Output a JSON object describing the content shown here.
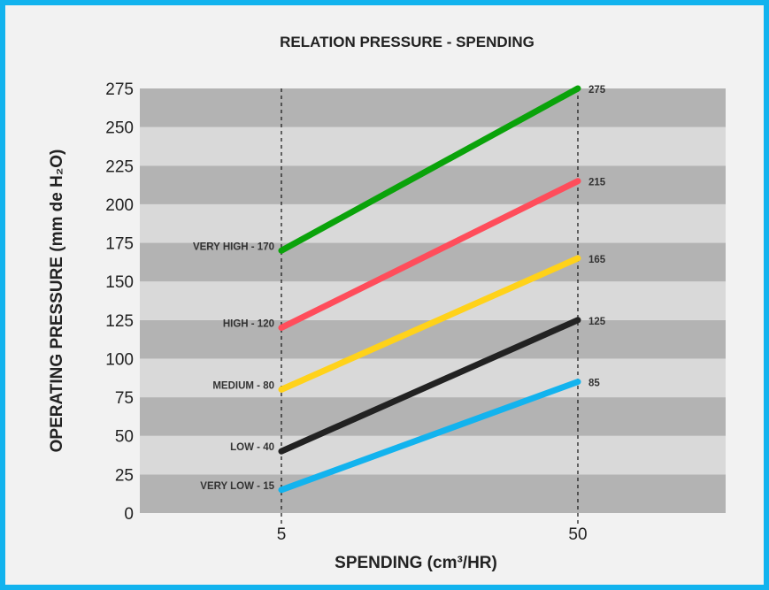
{
  "chart_data": {
    "type": "line",
    "title": "RELATION PRESSURE - SPENDING",
    "xlabel": "SPENDING (cm³/HR)",
    "ylabel": "OPERATING PRESSURE (mm de H₂O)",
    "x": [
      5,
      50
    ],
    "x_tick_labels": [
      "5",
      "50"
    ],
    "ylim": [
      0,
      275
    ],
    "y_ticks": [
      0,
      25,
      50,
      75,
      100,
      125,
      150,
      175,
      200,
      225,
      250,
      275
    ],
    "grid": "alternating horizontal bands",
    "band_colors": [
      "#b3b3b3",
      "#d9d9d9"
    ],
    "series": [
      {
        "values": [
          170,
          275
        ],
        "color": "#0aa30a",
        "start_label": "VERY HIGH  -  170",
        "end_label": "275"
      },
      {
        "values": [
          120,
          215
        ],
        "color": "#ff4d5b",
        "start_label": "HIGH  -  120",
        "end_label": "215"
      },
      {
        "values": [
          80,
          165
        ],
        "color": "#ffd21a",
        "start_label": "MEDIUM  -  80",
        "end_label": "165"
      },
      {
        "values": [
          40,
          125
        ],
        "color": "#222222",
        "start_label": "LOW  -  40",
        "end_label": "125"
      },
      {
        "values": [
          15,
          85
        ],
        "color": "#12b3ee",
        "start_label": "VERY LOW  -  15",
        "end_label": "85"
      }
    ]
  }
}
